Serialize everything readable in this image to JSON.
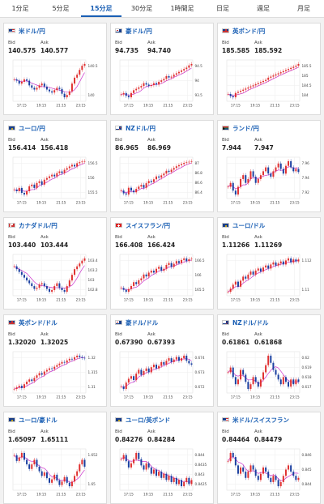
{
  "tabs": [
    {
      "label": "1分足",
      "active": false
    },
    {
      "label": "5分足",
      "active": false
    },
    {
      "label": "15分足",
      "active": true
    },
    {
      "label": "30分足",
      "active": false
    },
    {
      "label": "1時間足",
      "active": false
    },
    {
      "label": "日足",
      "active": false
    },
    {
      "label": "週足",
      "active": false
    },
    {
      "label": "月足",
      "active": false
    }
  ],
  "labels": {
    "bid": "Bid",
    "ask": "Ask"
  },
  "colors": {
    "up": "#e03030",
    "down": "#1a3fa0",
    "ma": "#cc33cc",
    "accent": "#1a5fb4"
  },
  "cards": [
    {
      "flag": "us",
      "pair": "米ドル/円",
      "bid": "140.575",
      "ask": "140.577",
      "chart_data": {
        "type": "candlestick",
        "x_ticks": [
          "17:15",
          "19:15",
          "21:15",
          "23:15"
        ],
        "y_ticks": [
          "140.5",
          "140"
        ],
        "close": [
          140.32,
          140.3,
          140.25,
          140.28,
          140.32,
          140.3,
          140.22,
          140.18,
          140.15,
          140.18,
          140.22,
          140.25,
          140.2,
          140.15,
          140.12,
          140.1,
          140.14,
          140.18,
          140.16,
          140.08,
          140.02,
          140.06,
          140.12,
          140.25,
          140.35,
          140.4,
          140.48,
          140.55,
          140.58
        ]
      }
    },
    {
      "flag": "au",
      "pair": "豪ドル/円",
      "bid": "94.735",
      "ask": "94.740",
      "chart_data": {
        "type": "candlestick",
        "x_ticks": [
          "17:15",
          "19:15",
          "21:15",
          "23:15"
        ],
        "y_ticks": [
          "94.5",
          "94",
          "93.5"
        ],
        "close": [
          93.65,
          93.7,
          93.6,
          93.55,
          93.7,
          93.8,
          93.85,
          93.9,
          93.95,
          94.05,
          94.0,
          93.95,
          93.98,
          94.05,
          94.0,
          94.1,
          94.15,
          94.2,
          94.3,
          94.25,
          94.28,
          94.35,
          94.4,
          94.45,
          94.5,
          94.55,
          94.6,
          94.68,
          94.73
        ]
      }
    },
    {
      "flag": "uk",
      "pair": "英ポンド/円",
      "bid": "185.585",
      "ask": "185.592",
      "chart_data": {
        "type": "candlestick",
        "x_ticks": [
          "17:15",
          "19:15",
          "21:15",
          "23:15"
        ],
        "y_ticks": [
          "185.5",
          "185",
          "184.5",
          "184"
        ],
        "close": [
          184.2,
          184.1,
          184.05,
          184.25,
          184.3,
          184.35,
          184.4,
          184.45,
          184.5,
          184.55,
          184.6,
          184.65,
          184.7,
          184.75,
          184.8,
          184.85,
          184.95,
          185.0,
          185.05,
          185.1,
          185.15,
          185.2,
          185.25,
          185.3,
          185.35,
          185.4,
          185.45,
          185.5,
          185.58
        ]
      }
    },
    {
      "flag": "eu",
      "pair": "ユーロ/円",
      "bid": "156.414",
      "ask": "156.418",
      "chart_data": {
        "type": "candlestick",
        "x_ticks": [
          "17:15",
          "19:15",
          "21:15",
          "23:15"
        ],
        "y_ticks": [
          "156.5",
          "156",
          "155.5"
        ],
        "close": [
          155.55,
          155.5,
          155.6,
          155.45,
          155.4,
          155.5,
          155.65,
          155.7,
          155.6,
          155.75,
          155.8,
          155.7,
          155.85,
          155.9,
          155.95,
          156.0,
          155.95,
          156.05,
          156.1,
          156.05,
          156.15,
          156.2,
          156.25,
          156.3,
          156.25,
          156.35,
          156.38,
          156.4,
          156.41
        ]
      }
    },
    {
      "flag": "nz",
      "pair": "NZドル/円",
      "bid": "86.965",
      "ask": "86.969",
      "chart_data": {
        "type": "candlestick",
        "x_ticks": [
          "17:15",
          "19:15",
          "21:15",
          "23:15"
        ],
        "y_ticks": [
          "87",
          "86.8",
          "86.6",
          "86.4"
        ],
        "close": [
          86.45,
          86.4,
          86.38,
          86.5,
          86.45,
          86.42,
          86.48,
          86.52,
          86.55,
          86.5,
          86.58,
          86.62,
          86.6,
          86.65,
          86.7,
          86.68,
          86.72,
          86.75,
          86.8,
          86.78,
          86.82,
          86.85,
          86.88,
          86.9,
          86.92,
          86.94,
          86.95,
          86.96,
          86.97
        ]
      }
    },
    {
      "flag": "za",
      "pair": "ランド/円",
      "bid": "7.944",
      "ask": "7.947",
      "chart_data": {
        "type": "candlestick",
        "x_ticks": [
          "17:15",
          "19:15",
          "21:15",
          "23:15"
        ],
        "y_ticks": [
          "7.96",
          "7.94",
          "7.92"
        ],
        "close": [
          7.925,
          7.93,
          7.92,
          7.915,
          7.925,
          7.935,
          7.94,
          7.93,
          7.935,
          7.945,
          7.938,
          7.93,
          7.935,
          7.94,
          7.945,
          7.95,
          7.942,
          7.938,
          7.945,
          7.95,
          7.955,
          7.948,
          7.942,
          7.952,
          7.958,
          7.95,
          7.945,
          7.948,
          7.944
        ]
      }
    },
    {
      "flag": "ca",
      "pair": "カナダドル/円",
      "bid": "103.440",
      "ask": "103.444",
      "chart_data": {
        "type": "candlestick",
        "x_ticks": [
          "17:15",
          "19:15",
          "21:15",
          "23:15"
        ],
        "y_ticks": [
          "103.4",
          "103.2",
          "103",
          "102.8"
        ],
        "close": [
          103.3,
          103.25,
          103.2,
          103.15,
          103.1,
          103.05,
          103.0,
          102.95,
          102.9,
          102.92,
          102.98,
          103.0,
          102.95,
          102.9,
          102.85,
          102.88,
          102.95,
          103.0,
          102.92,
          102.88,
          102.85,
          102.95,
          103.05,
          103.15,
          103.25,
          103.3,
          103.35,
          103.4,
          103.44
        ]
      }
    },
    {
      "flag": "ch",
      "pair": "スイスフラン/円",
      "bid": "166.408",
      "ask": "166.424",
      "chart_data": {
        "type": "candlestick",
        "x_ticks": [
          "17:15",
          "19:15",
          "21:15",
          "23:15"
        ],
        "y_ticks": [
          "166.5",
          "166",
          "165.5"
        ],
        "close": [
          165.65,
          165.6,
          165.55,
          165.62,
          165.7,
          165.8,
          165.75,
          165.85,
          165.9,
          166.0,
          165.95,
          166.05,
          166.1,
          166.05,
          166.15,
          166.2,
          166.1,
          166.15,
          166.25,
          166.3,
          166.2,
          166.28,
          166.35,
          166.3,
          166.38,
          166.42,
          166.35,
          166.4,
          166.41
        ]
      }
    },
    {
      "flag": "eu",
      "pair": "ユーロ/ドル",
      "bid": "1.11266",
      "ask": "1.11269",
      "chart_data": {
        "type": "candlestick",
        "x_ticks": [
          "17:15",
          "19:15",
          "21:15",
          "23:15"
        ],
        "y_ticks": [
          "1.112",
          "1.11"
        ],
        "close": [
          1.1095,
          1.1098,
          1.1102,
          1.1105,
          1.11,
          1.1106,
          1.111,
          1.1108,
          1.1112,
          1.1115,
          1.1112,
          1.1116,
          1.1118,
          1.1115,
          1.1119,
          1.1121,
          1.1118,
          1.1122,
          1.1124,
          1.1121,
          1.1123,
          1.1125,
          1.1122,
          1.1126,
          1.1128,
          1.1124,
          1.1127,
          1.1125,
          1.1127
        ]
      }
    },
    {
      "flag": "uk",
      "pair": "英ポンド/ドル",
      "bid": "1.32020",
      "ask": "1.32025",
      "chart_data": {
        "type": "candlestick",
        "x_ticks": [
          "17:15",
          "19:15",
          "21:15",
          "23:15"
        ],
        "y_ticks": [
          "1.32",
          "1.315",
          "1.31"
        ],
        "close": [
          1.3105,
          1.311,
          1.3115,
          1.3108,
          1.312,
          1.3128,
          1.3135,
          1.313,
          1.314,
          1.3148,
          1.3155,
          1.315,
          1.316,
          1.3165,
          1.317,
          1.3168,
          1.3175,
          1.318,
          1.3185,
          1.319,
          1.3188,
          1.3195,
          1.32,
          1.3198,
          1.3205,
          1.321,
          1.3206,
          1.3203,
          1.3202
        ]
      }
    },
    {
      "flag": "au",
      "pair": "豪ドル/ドル",
      "bid": "0.67390",
      "ask": "0.67393",
      "chart_data": {
        "type": "candlestick",
        "x_ticks": [
          "17:15",
          "19:15",
          "21:15",
          "23:15"
        ],
        "y_ticks": [
          "0.674",
          "0.673",
          "0.672"
        ],
        "close": [
          0.6722,
          0.672,
          0.6725,
          0.6728,
          0.673,
          0.6727,
          0.6732,
          0.6735,
          0.6731,
          0.6734,
          0.6736,
          0.6733,
          0.6737,
          0.6739,
          0.6736,
          0.6738,
          0.6741,
          0.6739,
          0.6742,
          0.6744,
          0.6741,
          0.6743,
          0.6745,
          0.6742,
          0.6744,
          0.6746,
          0.6742,
          0.674,
          0.6739
        ]
      }
    },
    {
      "flag": "nz",
      "pair": "NZドル/ドル",
      "bid": "0.61861",
      "ask": "0.61868",
      "chart_data": {
        "type": "candlestick",
        "x_ticks": [
          "17:15",
          "19:15",
          "21:15",
          "23:15"
        ],
        "y_ticks": [
          "0.62",
          "0.619",
          "0.618",
          "0.617"
        ],
        "close": [
          0.619,
          0.6192,
          0.6188,
          0.6185,
          0.6187,
          0.6191,
          0.6189,
          0.6186,
          0.6183,
          0.6185,
          0.6188,
          0.6186,
          0.6184,
          0.6187,
          0.619,
          0.6193,
          0.6197,
          0.6194,
          0.6191,
          0.6189,
          0.6187,
          0.6185,
          0.6188,
          0.6186,
          0.6184,
          0.6187,
          0.6185,
          0.6187,
          0.6186
        ]
      }
    },
    {
      "flag": "eu",
      "pair": "ユーロ/豪ドル",
      "bid": "1.65097",
      "ask": "1.65111",
      "chart_data": {
        "type": "candlestick",
        "x_ticks": [
          "17:15",
          "19:15",
          "21:15",
          "23:15"
        ],
        "y_ticks": [
          "1.652",
          "1.65"
        ],
        "close": [
          1.652,
          1.6515,
          1.6518,
          1.6522,
          1.6516,
          1.6512,
          1.6508,
          1.6512,
          1.6516,
          1.651,
          1.6506,
          1.6502,
          1.6505,
          1.65,
          1.6496,
          1.6499,
          1.6503,
          1.6498,
          1.6494,
          1.6497,
          1.6501,
          1.6496,
          1.6493,
          1.6497,
          1.6502,
          1.6506,
          1.6512,
          1.6516,
          1.651
        ]
      }
    },
    {
      "flag": "eu",
      "pair": "ユーロ/英ポンド",
      "bid": "0.84276",
      "ask": "0.84284",
      "chart_data": {
        "type": "candlestick",
        "x_ticks": [
          "17:15",
          "19:15",
          "21:15",
          "23:15"
        ],
        "y_ticks": [
          "0.844",
          "0.8435",
          "0.843",
          "0.8425"
        ],
        "close": [
          0.8438,
          0.844,
          0.8437,
          0.8434,
          0.8436,
          0.8438,
          0.8441,
          0.8438,
          0.8435,
          0.8433,
          0.8436,
          0.8434,
          0.8431,
          0.8433,
          0.843,
          0.8432,
          0.8429,
          0.8431,
          0.8428,
          0.843,
          0.8427,
          0.8429,
          0.8426,
          0.8428,
          0.8425,
          0.8427,
          0.8429,
          0.8426,
          0.8428
        ]
      }
    },
    {
      "flag": "us",
      "pair": "米ドル/スイスフラン",
      "bid": "0.84464",
      "ask": "0.84479",
      "chart_data": {
        "type": "candlestick",
        "x_ticks": [
          "17:15",
          "19:15",
          "21:15",
          "23:15"
        ],
        "y_ticks": [
          "0.846",
          "0.845",
          "0.844"
        ],
        "close": [
          0.8454,
          0.8458,
          0.8456,
          0.8452,
          0.8448,
          0.8451,
          0.8449,
          0.8446,
          0.8449,
          0.8452,
          0.845,
          0.8447,
          0.8445,
          0.8448,
          0.8451,
          0.8449,
          0.8446,
          0.8444,
          0.8447,
          0.8445,
          0.8442,
          0.8444,
          0.8447,
          0.845,
          0.8452,
          0.8449,
          0.8447,
          0.8445,
          0.8446
        ]
      }
    }
  ]
}
